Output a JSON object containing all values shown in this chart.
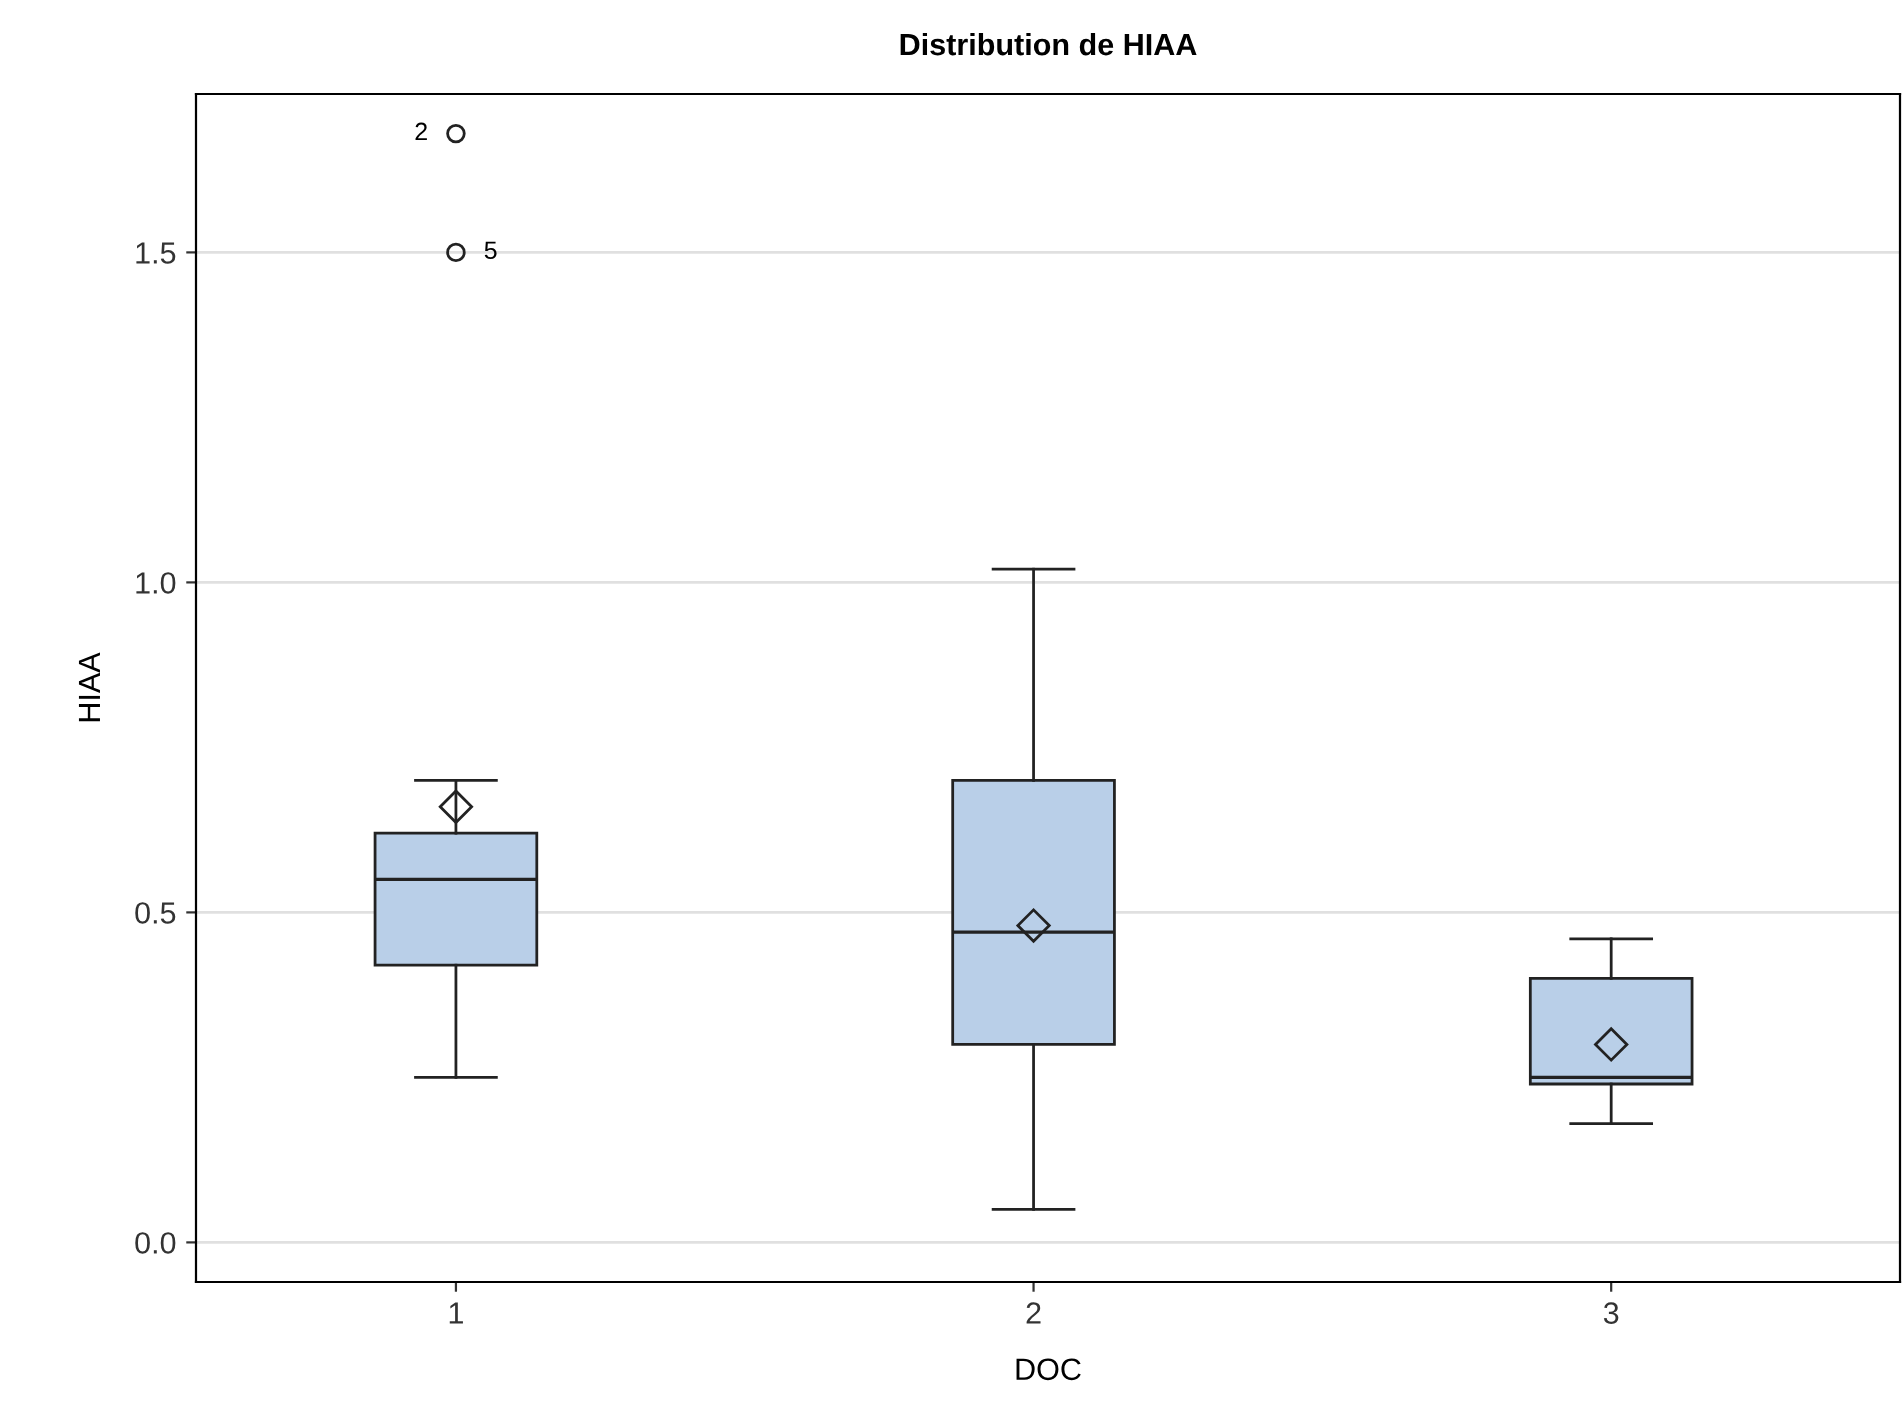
{
  "chart_data": {
    "type": "box",
    "title": "Distribution de HIAA",
    "xlabel": "DOC",
    "ylabel": "HIAA",
    "categories": [
      "1",
      "2",
      "3"
    ],
    "boxes": [
      {
        "low": 0.25,
        "q1": 0.42,
        "median": 0.55,
        "q3": 0.62,
        "high": 0.7,
        "mean": 0.66,
        "outliers": [
          1.68,
          1.5
        ]
      },
      {
        "low": 0.05,
        "q1": 0.3,
        "median": 0.47,
        "q3": 0.7,
        "high": 1.02,
        "mean": 0.48
      },
      {
        "low": 0.18,
        "q1": 0.24,
        "median": 0.25,
        "q3": 0.4,
        "high": 0.46,
        "mean": 0.3
      }
    ],
    "color": "#b9cfe8",
    "ylim": [
      -0.06,
      1.74
    ],
    "yticks": [
      {
        "value": 0,
        "label": "0.0"
      },
      1.5,
      {
        "value": 1,
        "label": "1.0"
      },
      0.5
    ],
    "grid": "y",
    "annotations": [
      "2",
      "5"
    ]
  }
}
